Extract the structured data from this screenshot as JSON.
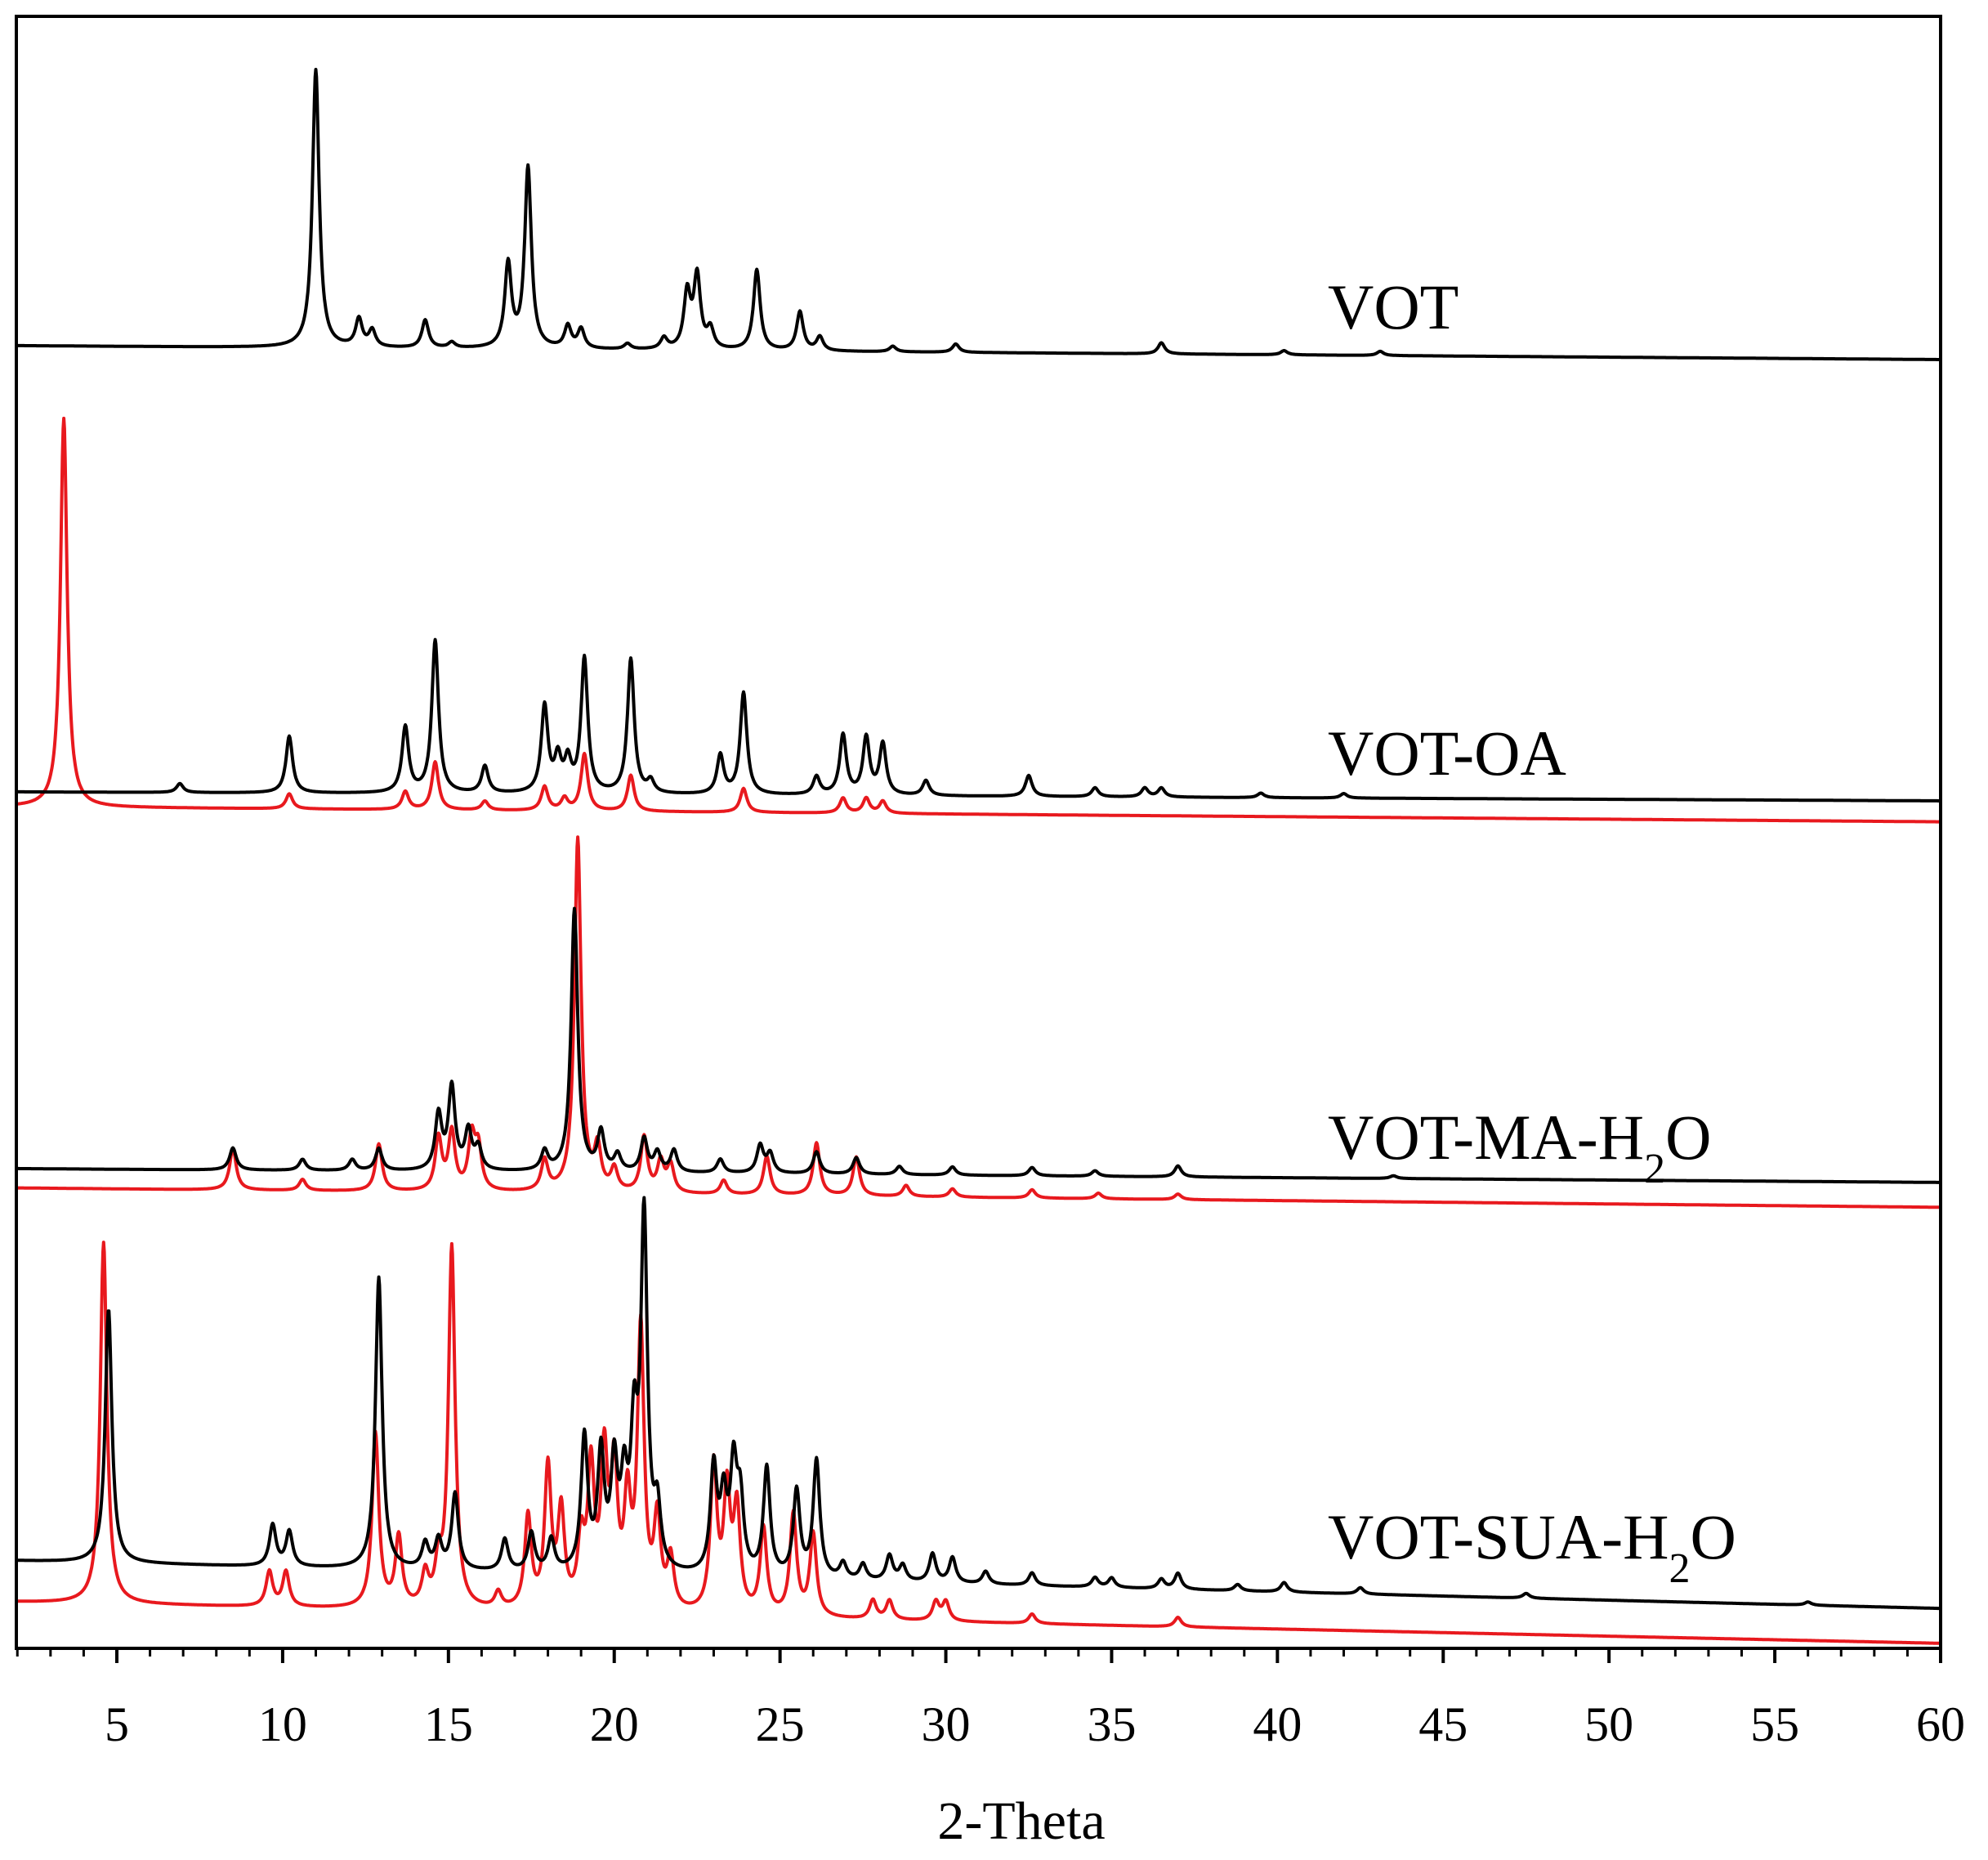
{
  "chart_data": {
    "type": "line",
    "title": "",
    "xlabel": "2-Theta",
    "ylabel": "",
    "xlim": [
      2,
      60
    ],
    "x_ticks": [
      5,
      10,
      15,
      20,
      25,
      30,
      35,
      40,
      45,
      50,
      55,
      60
    ],
    "x_minor_step": 1,
    "grid": false,
    "legend": "inline series labels at right of each trace",
    "colors": {
      "experimental": "#000000",
      "simulated": "#e8191e"
    },
    "panels": [
      {
        "label": "VOT",
        "label_parts": [
          "VOT"
        ],
        "experimental": {
          "baseline": 0.0,
          "peaks": [
            [
              11.0,
              1.0
            ],
            [
              12.3,
              0.1
            ],
            [
              12.7,
              0.06
            ],
            [
              14.3,
              0.1
            ],
            [
              15.1,
              0.02
            ],
            [
              16.8,
              0.3
            ],
            [
              17.4,
              0.65
            ],
            [
              18.6,
              0.08
            ],
            [
              19.0,
              0.07
            ],
            [
              20.4,
              0.02
            ],
            [
              21.5,
              0.04
            ],
            [
              22.2,
              0.2
            ],
            [
              22.5,
              0.26
            ],
            [
              22.9,
              0.07
            ],
            [
              24.3,
              0.29
            ],
            [
              25.6,
              0.14
            ],
            [
              26.2,
              0.05
            ],
            [
              28.4,
              0.02
            ],
            [
              30.3,
              0.03
            ],
            [
              36.5,
              0.04
            ],
            [
              40.2,
              0.015
            ],
            [
              43.1,
              0.015
            ]
          ],
          "drift_end": -0.05
        }
      },
      {
        "label": "VOT-OA",
        "label_parts": [
          "VOT-OA"
        ],
        "experimental": {
          "baseline": 0.0,
          "peaks": [
            [
              6.9,
              0.03
            ],
            [
              10.2,
              0.19
            ],
            [
              13.7,
              0.22
            ],
            [
              14.6,
              0.51
            ],
            [
              16.1,
              0.09
            ],
            [
              17.9,
              0.29
            ],
            [
              18.3,
              0.11
            ],
            [
              18.6,
              0.1
            ],
            [
              19.1,
              0.45
            ],
            [
              20.5,
              0.45
            ],
            [
              21.1,
              0.04
            ],
            [
              23.2,
              0.13
            ],
            [
              23.9,
              0.34
            ],
            [
              26.1,
              0.06
            ],
            [
              26.9,
              0.2
            ],
            [
              27.6,
              0.19
            ],
            [
              28.1,
              0.17
            ],
            [
              29.4,
              0.05
            ],
            [
              32.5,
              0.07
            ],
            [
              34.5,
              0.03
            ],
            [
              36.0,
              0.03
            ],
            [
              36.5,
              0.03
            ],
            [
              39.5,
              0.015
            ],
            [
              42.0,
              0.015
            ]
          ],
          "drift_end": -0.03
        },
        "simulated": {
          "baseline": -0.05,
          "peaks": [
            [
              3.4,
              1.3
            ],
            [
              10.2,
              0.05
            ],
            [
              13.7,
              0.06
            ],
            [
              14.6,
              0.16
            ],
            [
              16.1,
              0.03
            ],
            [
              17.9,
              0.08
            ],
            [
              18.5,
              0.04
            ],
            [
              19.1,
              0.19
            ],
            [
              20.5,
              0.12
            ],
            [
              23.9,
              0.08
            ],
            [
              26.9,
              0.05
            ],
            [
              27.6,
              0.05
            ],
            [
              28.1,
              0.04
            ]
          ],
          "drift_end": -0.05
        }
      },
      {
        "label": "VOT-MA-H2O",
        "label_parts": [
          "VOT-MA-H",
          "2",
          "O"
        ],
        "experimental": {
          "baseline": 0.0,
          "peaks": [
            [
              8.5,
              0.08
            ],
            [
              10.6,
              0.04
            ],
            [
              12.1,
              0.04
            ],
            [
              12.9,
              0.08
            ],
            [
              14.7,
              0.2
            ],
            [
              15.1,
              0.3
            ],
            [
              15.6,
              0.14
            ],
            [
              15.9,
              0.08
            ],
            [
              17.9,
              0.07
            ],
            [
              18.8,
              0.95
            ],
            [
              19.6,
              0.14
            ],
            [
              20.1,
              0.06
            ],
            [
              20.9,
              0.12
            ],
            [
              21.3,
              0.07
            ],
            [
              21.8,
              0.08
            ],
            [
              23.2,
              0.05
            ],
            [
              24.4,
              0.1
            ],
            [
              24.7,
              0.07
            ],
            [
              26.1,
              0.08
            ],
            [
              27.3,
              0.06
            ],
            [
              28.6,
              0.03
            ],
            [
              30.2,
              0.03
            ],
            [
              32.6,
              0.03
            ],
            [
              34.5,
              0.02
            ],
            [
              37.0,
              0.04
            ],
            [
              43.5,
              0.01
            ]
          ],
          "drift_end": -0.05
        },
        "simulated": {
          "baseline": -0.07,
          "peaks": [
            [
              8.5,
              0.15
            ],
            [
              10.6,
              0.04
            ],
            [
              12.9,
              0.17
            ],
            [
              14.7,
              0.19
            ],
            [
              15.1,
              0.21
            ],
            [
              15.7,
              0.19
            ],
            [
              15.9,
              0.15
            ],
            [
              17.9,
              0.11
            ],
            [
              18.9,
              1.28
            ],
            [
              19.5,
              0.15
            ],
            [
              20.0,
              0.08
            ],
            [
              20.9,
              0.2
            ],
            [
              21.4,
              0.11
            ],
            [
              21.7,
              0.1
            ],
            [
              23.3,
              0.05
            ],
            [
              24.6,
              0.14
            ],
            [
              26.1,
              0.19
            ],
            [
              27.3,
              0.14
            ],
            [
              28.8,
              0.04
            ],
            [
              30.2,
              0.03
            ],
            [
              32.6,
              0.03
            ],
            [
              34.6,
              0.02
            ],
            [
              37.0,
              0.02
            ]
          ],
          "drift_end": -0.07
        }
      },
      {
        "label": "VOT-SUA-H2O",
        "label_parts": [
          "VOT-SUA-H",
          "2",
          "O"
        ],
        "experimental": {
          "baseline": 0.0,
          "peaks": [
            [
              4.75,
              0.8
            ],
            [
              9.7,
              0.13
            ],
            [
              10.2,
              0.11
            ],
            [
              12.9,
              0.92
            ],
            [
              14.3,
              0.08
            ],
            [
              14.7,
              0.09
            ],
            [
              15.2,
              0.24
            ],
            [
              16.7,
              0.1
            ],
            [
              17.5,
              0.12
            ],
            [
              18.1,
              0.1
            ],
            [
              19.1,
              0.42
            ],
            [
              19.6,
              0.36
            ],
            [
              20.0,
              0.32
            ],
            [
              20.3,
              0.25
            ],
            [
              20.6,
              0.4
            ],
            [
              20.9,
              1.1
            ],
            [
              21.3,
              0.18
            ],
            [
              23.0,
              0.33
            ],
            [
              23.3,
              0.22
            ],
            [
              23.6,
              0.32
            ],
            [
              23.8,
              0.22
            ],
            [
              24.6,
              0.34
            ],
            [
              25.5,
              0.27
            ],
            [
              26.1,
              0.37
            ],
            [
              26.9,
              0.05
            ],
            [
              27.5,
              0.05
            ],
            [
              28.3,
              0.08
            ],
            [
              28.7,
              0.05
            ],
            [
              29.6,
              0.09
            ],
            [
              30.2,
              0.08
            ],
            [
              31.2,
              0.04
            ],
            [
              32.6,
              0.04
            ],
            [
              34.5,
              0.03
            ],
            [
              35.0,
              0.03
            ],
            [
              36.5,
              0.03
            ],
            [
              37.0,
              0.05
            ],
            [
              38.8,
              0.02
            ],
            [
              40.2,
              0.03
            ],
            [
              42.5,
              0.02
            ],
            [
              47.5,
              0.015
            ],
            [
              56.0,
              0.01
            ]
          ],
          "drift_end": -0.15
        },
        "simulated": {
          "baseline": -0.13,
          "peaks": [
            [
              4.6,
              1.14
            ],
            [
              9.6,
              0.11
            ],
            [
              10.1,
              0.11
            ],
            [
              12.8,
              0.55
            ],
            [
              13.5,
              0.22
            ],
            [
              14.3,
              0.1
            ],
            [
              14.7,
              0.12
            ],
            [
              15.1,
              1.14
            ],
            [
              16.5,
              0.05
            ],
            [
              17.4,
              0.29
            ],
            [
              18.0,
              0.44
            ],
            [
              18.4,
              0.3
            ],
            [
              19.0,
              0.2
            ],
            [
              19.3,
              0.43
            ],
            [
              19.7,
              0.46
            ],
            [
              20.0,
              0.42
            ],
            [
              20.4,
              0.32
            ],
            [
              20.8,
              0.88
            ],
            [
              21.3,
              0.28
            ],
            [
              21.7,
              0.16
            ],
            [
              23.0,
              0.46
            ],
            [
              23.4,
              0.37
            ],
            [
              23.7,
              0.32
            ],
            [
              24.5,
              0.27
            ],
            [
              25.4,
              0.32
            ],
            [
              26.0,
              0.26
            ],
            [
              27.8,
              0.06
            ],
            [
              28.3,
              0.06
            ],
            [
              29.7,
              0.06
            ],
            [
              30.0,
              0.06
            ],
            [
              32.6,
              0.03
            ],
            [
              37.0,
              0.03
            ]
          ],
          "drift_end": -0.13
        }
      }
    ]
  }
}
